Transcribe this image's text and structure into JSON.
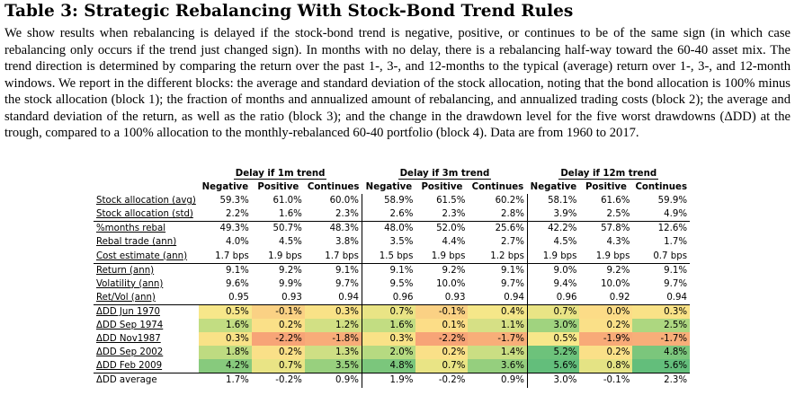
{
  "title": "Table 3: Strategic Rebalancing With Stock-Bond Trend Rules",
  "caption": "We show results when rebalancing is delayed if the stock-bond trend is negative, positive, or continues to be of the same sign (in which case rebalancing only occurs if the trend just changed sign). In months with no delay, there is a rebalancing half-way toward the 60-40 asset mix. The trend direction is determined by comparing the return over the past 1-, 3-, and 12-months to the typical (average) return over 1-, 3-, and 12-month windows. We report in the different blocks: the average and standard deviation of the stock allocation, noting that the bond allocation is 100% minus the stock allocation (block 1); the fraction of months and annualized amount of rebalancing, and annualized trading costs (block 2); the average and standard deviation of the return, as well as the ratio (block 3); and the change in the drawdown level for the five worst drawdowns (ΔDD) at the trough, compared to a 100% allocation to the monthly-rebalanced 60-40 portfolio (block 4). Data are from 1960 to 2017.",
  "table": {
    "groups": [
      "Delay if 1m trend",
      "Delay if 3m trend",
      "Delay if 12m trend"
    ],
    "columns": [
      "Negative",
      "Positive",
      "Continues",
      "Negative",
      "Positive",
      "Continues",
      "Negative",
      "Positive",
      "Continues"
    ],
    "rows": [
      {
        "label": "Stock allocation (avg)",
        "values": [
          "59.3%",
          "61.0%",
          "60.0%",
          "58.9%",
          "61.5%",
          "60.2%",
          "58.1%",
          "61.6%",
          "59.9%"
        ]
      },
      {
        "label": "Stock allocation (std)",
        "values": [
          "2.2%",
          "1.6%",
          "2.3%",
          "2.6%",
          "2.3%",
          "2.8%",
          "3.9%",
          "2.5%",
          "4.9%"
        ]
      },
      {
        "label": "%months rebal",
        "values": [
          "49.3%",
          "50.7%",
          "48.3%",
          "48.0%",
          "52.0%",
          "25.6%",
          "42.2%",
          "57.8%",
          "12.6%"
        ]
      },
      {
        "label": "Rebal trade (ann)",
        "values": [
          "4.0%",
          "4.5%",
          "3.8%",
          "3.5%",
          "4.4%",
          "2.7%",
          "4.5%",
          "4.3%",
          "1.7%"
        ]
      },
      {
        "label": "Cost estimate (ann)",
        "values": [
          "1.7 bps",
          "1.9 bps",
          "1.7 bps",
          "1.5 bps",
          "1.9 bps",
          "1.2 bps",
          "1.9 bps",
          "1.9 bps",
          "0.7 bps"
        ]
      },
      {
        "label": "Return (ann)",
        "values": [
          "9.1%",
          "9.2%",
          "9.1%",
          "9.1%",
          "9.2%",
          "9.1%",
          "9.0%",
          "9.2%",
          "9.1%"
        ]
      },
      {
        "label": "Volatility (ann)",
        "values": [
          "9.6%",
          "9.9%",
          "9.7%",
          "9.5%",
          "10.0%",
          "9.7%",
          "9.4%",
          "10.0%",
          "9.7%"
        ]
      },
      {
        "label": "Ret/Vol (ann)",
        "values": [
          "0.95",
          "0.93",
          "0.94",
          "0.96",
          "0.93",
          "0.94",
          "0.96",
          "0.92",
          "0.94"
        ]
      },
      {
        "label": "ΔDD Jun 1970",
        "values": [
          "0.5%",
          "-0.1%",
          "0.3%",
          "0.7%",
          "-0.1%",
          "0.4%",
          "0.7%",
          "0.0%",
          "0.3%"
        ],
        "colors": [
          "#F7E78A",
          "#FAD184",
          "#F9E287",
          "#E9E485",
          "#FAD184",
          "#F5E789",
          "#E9E485",
          "#FCDC87",
          "#F9E287"
        ]
      },
      {
        "label": "ΔDD Sep 1974",
        "values": [
          "1.6%",
          "0.2%",
          "1.2%",
          "1.6%",
          "0.1%",
          "1.1%",
          "3.0%",
          "0.2%",
          "2.5%"
        ],
        "colors": [
          "#C2DD82",
          "#FAE088",
          "#D2E084",
          "#C2DD82",
          "#FCDD87",
          "#D6E085",
          "#A0D37F",
          "#FAE088",
          "#ADD780"
        ]
      },
      {
        "label": "ΔDD Nov1987",
        "values": [
          "0.3%",
          "-2.2%",
          "-1.8%",
          "0.3%",
          "-2.2%",
          "-1.7%",
          "0.5%",
          "-1.9%",
          "-1.7%"
        ],
        "colors": [
          "#F9E287",
          "#F7A477",
          "#F8AC79",
          "#F9E287",
          "#F7A477",
          "#F8AE79",
          "#F7E78A",
          "#F8AA78",
          "#F8AE79"
        ]
      },
      {
        "label": "ΔDD Sep 2002",
        "values": [
          "1.8%",
          "0.2%",
          "1.3%",
          "2.0%",
          "0.2%",
          "1.4%",
          "5.2%",
          "0.2%",
          "4.8%"
        ],
        "colors": [
          "#BEDB81",
          "#FAE088",
          "#CEDF84",
          "#B6DA81",
          "#FAE088",
          "#CADE83",
          "#6DC27B",
          "#FAE088",
          "#7BC67C"
        ]
      },
      {
        "label": "ΔDD Feb 2009",
        "values": [
          "4.2%",
          "0.7%",
          "3.5%",
          "4.8%",
          "0.7%",
          "3.6%",
          "5.6%",
          "0.8%",
          "5.6%"
        ],
        "colors": [
          "#87CA7D",
          "#E9E485",
          "#98D07E",
          "#7BC67C",
          "#E9E485",
          "#95CF7E",
          "#63BE7B",
          "#E4E384",
          "#63BE7B"
        ]
      },
      {
        "label": "ΔDD average",
        "values": [
          "1.7%",
          "-0.2%",
          "0.9%",
          "1.9%",
          "-0.2%",
          "0.9%",
          "3.0%",
          "-0.1%",
          "2.3%"
        ]
      }
    ]
  }
}
